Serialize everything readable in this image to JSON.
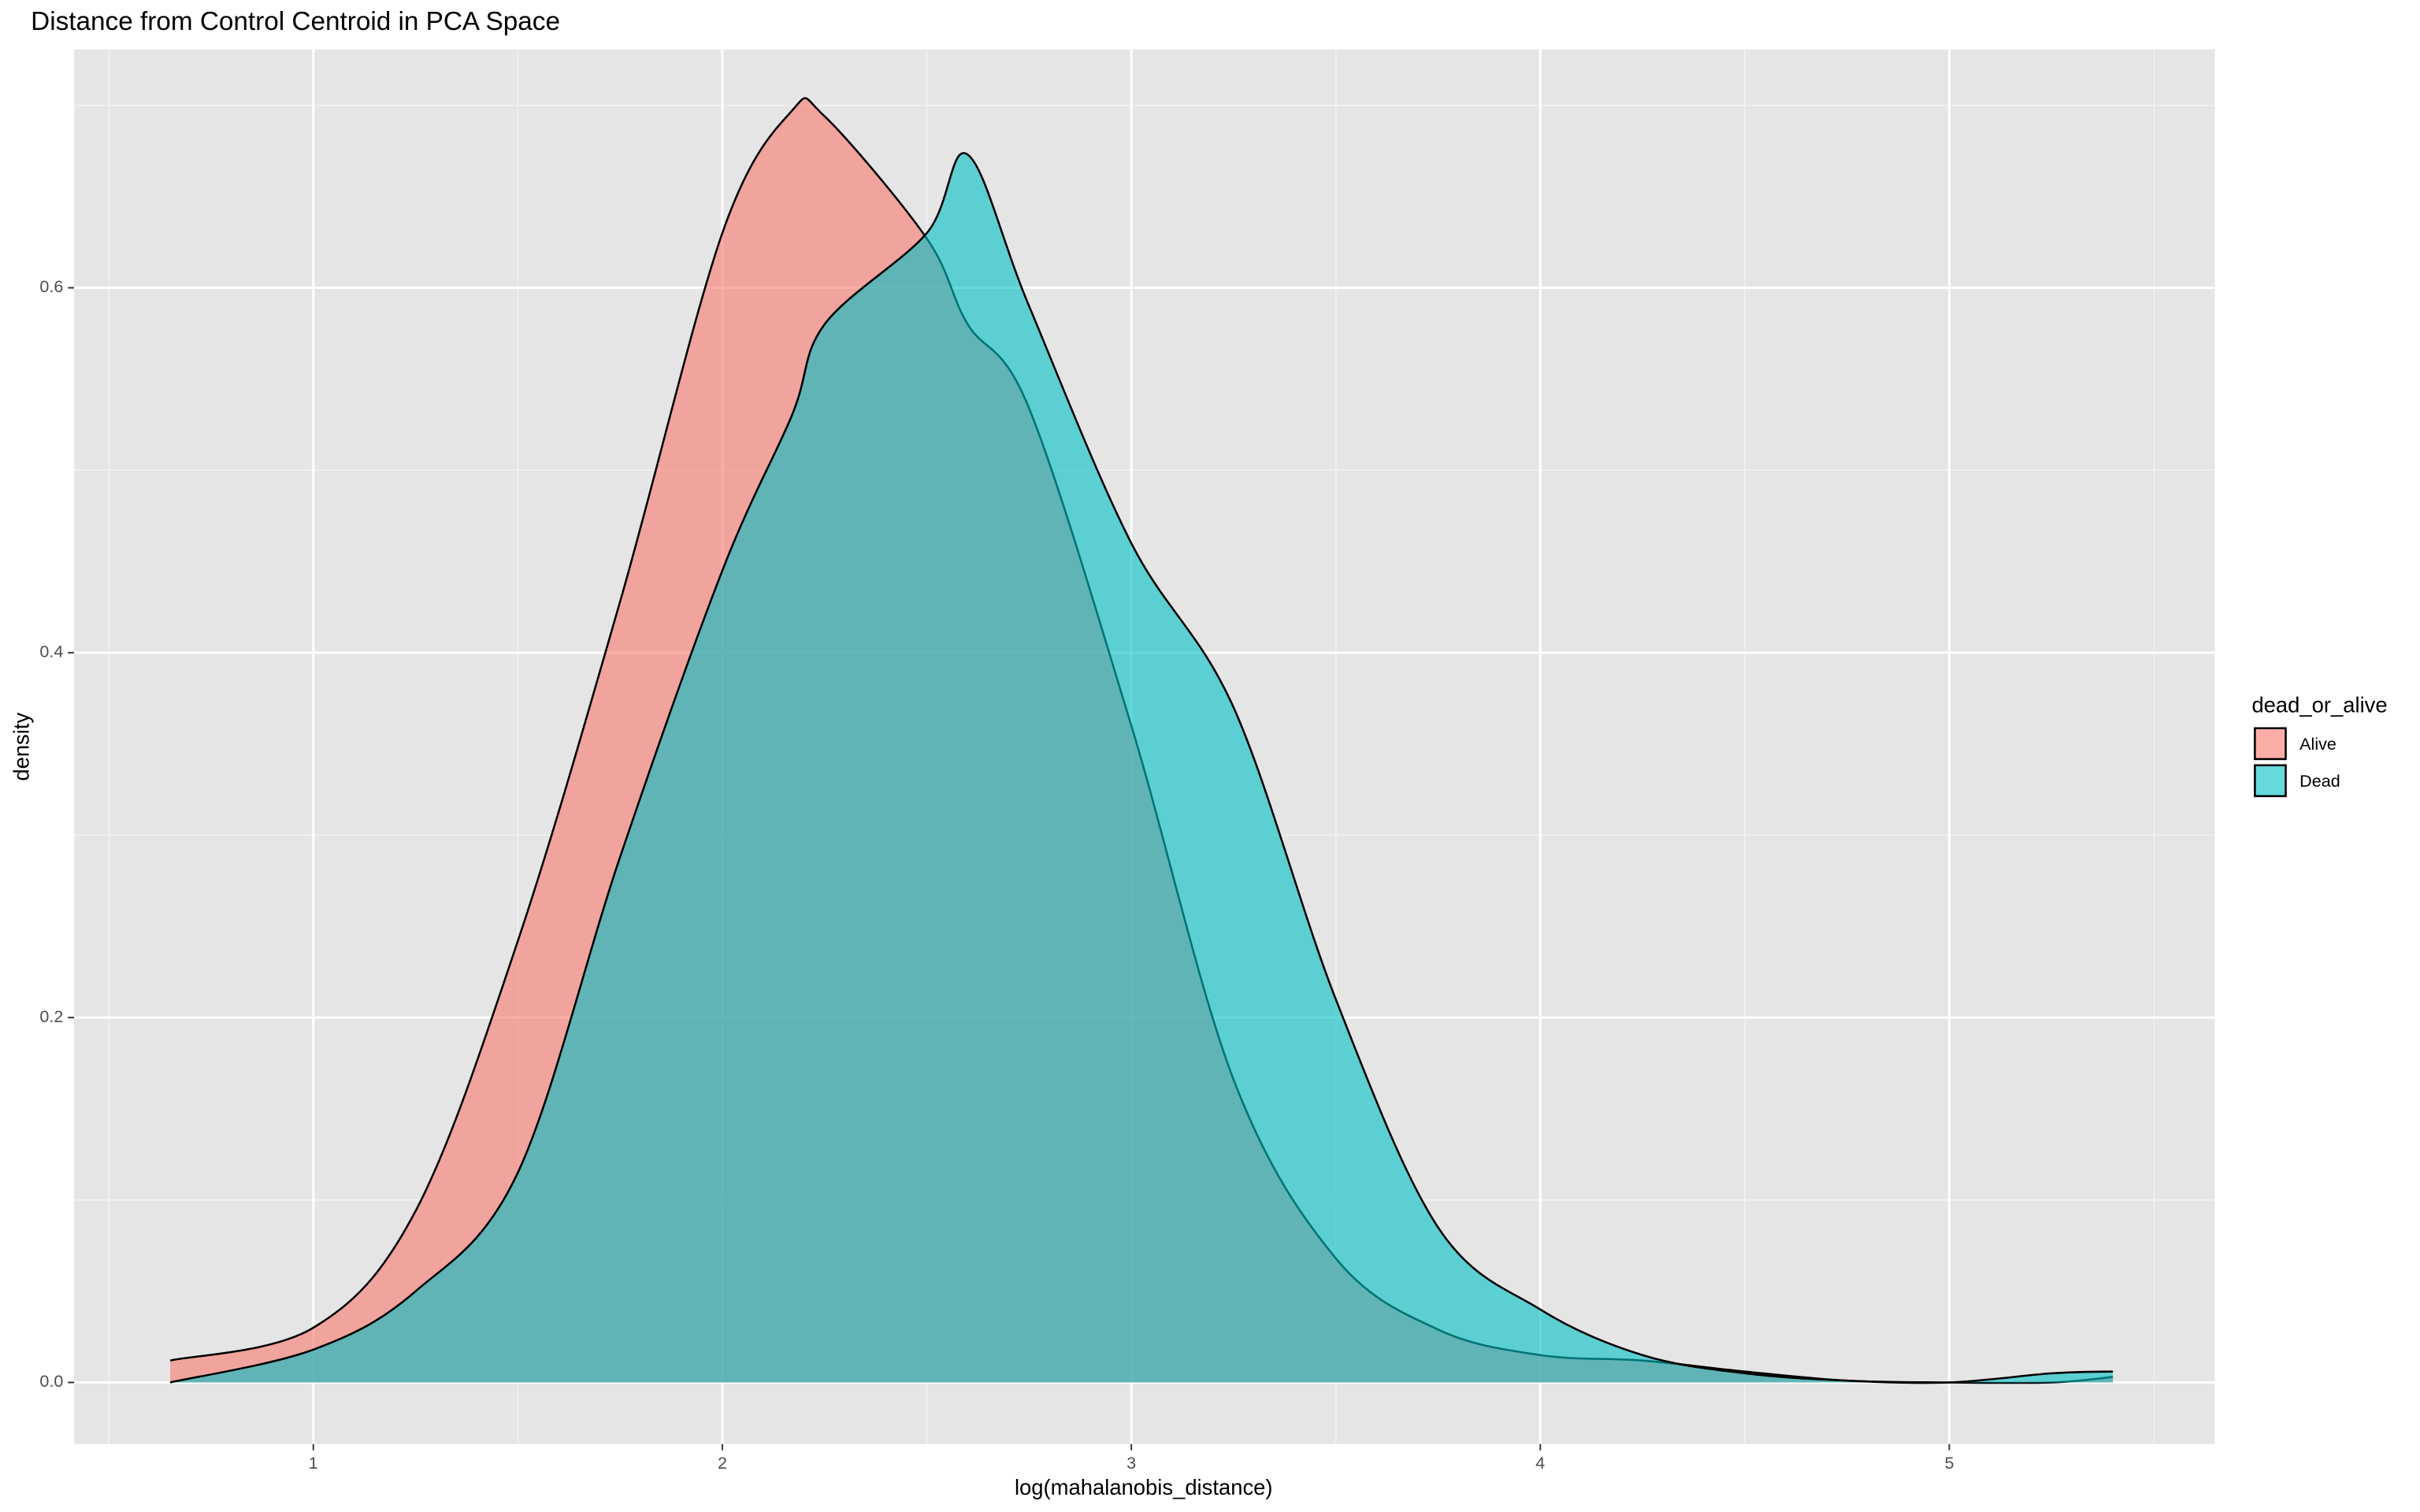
{
  "chart_data": {
    "type": "density",
    "title": "Distance from Control Centroid in PCA Space",
    "x_label": "log(mahalanobis_distance)",
    "y_label": "density",
    "legend_title": "dead_or_alive",
    "legend_position": "right",
    "grid": true,
    "x": [
      0.65,
      1,
      1.25,
      1.5,
      1.75,
      2,
      2.17,
      2.25,
      2.5,
      2.6,
      2.75,
      3,
      3.25,
      3.5,
      3.75,
      4,
      4.25,
      4.5,
      4.75,
      5,
      5.25,
      5.4
    ],
    "series": [
      {
        "name": "Alive",
        "color": "#F8766D",
        "values": [
          0.012,
          0.03,
          0.094,
          0.242,
          0.428,
          0.63,
          0.697,
          0.694,
          0.627,
          0.58,
          0.534,
          0.36,
          0.166,
          0.068,
          0.029,
          0.015,
          0.012,
          0.006,
          0.001,
          0.0,
          0.0,
          0.003
        ]
      },
      {
        "name": "Dead",
        "color": "#00BFC4",
        "values": [
          0.0,
          0.018,
          0.05,
          0.115,
          0.288,
          0.445,
          0.53,
          0.58,
          0.63,
          0.673,
          0.59,
          0.46,
          0.37,
          0.21,
          0.085,
          0.04,
          0.015,
          0.005,
          0.001,
          0.0,
          0.005,
          0.006
        ]
      }
    ],
    "xlim": [
      0.415,
      5.649
    ],
    "ylim": [
      -0.0338,
      0.7307
    ],
    "xticks": [
      1,
      2,
      3,
      4,
      5
    ],
    "yticks": [
      {
        "value": 0,
        "label": "0.0"
      },
      {
        "value": 0.2,
        "label": "0.2"
      },
      {
        "value": 0.4,
        "label": "0.4"
      },
      {
        "value": 0.6,
        "label": "0.6"
      }
    ]
  }
}
